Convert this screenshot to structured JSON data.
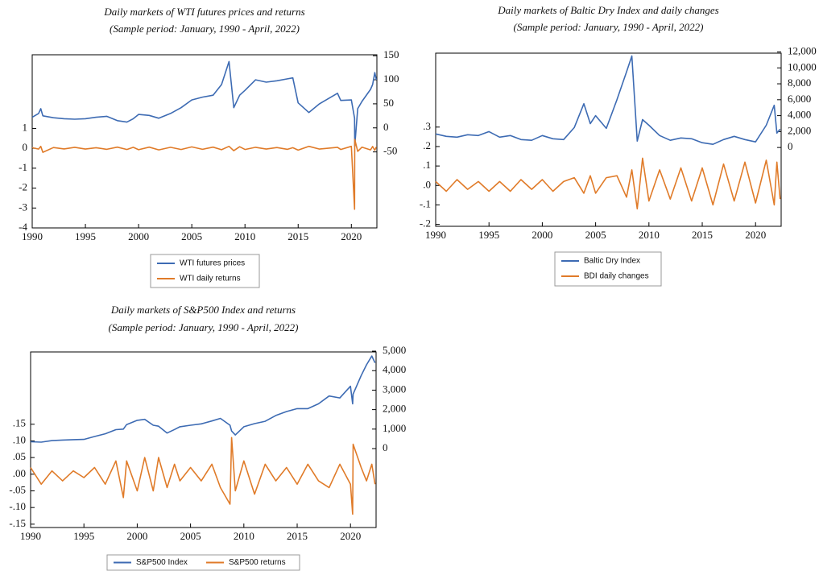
{
  "chart_data": [
    {
      "type": "line",
      "title": "Daily markets of WTI futures prices and returns",
      "subtitle": "(Sample period: January, 1990 - April, 2022)",
      "x": [
        1990,
        1990.6,
        1990.8,
        1991,
        1992,
        1993,
        1994,
        1995,
        1996,
        1997,
        1998,
        1998.9,
        1999.5,
        2000,
        2001,
        2001.9,
        2003,
        2004,
        2005,
        2006,
        2007,
        2007.8,
        2008.5,
        2008.95,
        2009.5,
        2010,
        2011,
        2012,
        2013,
        2014,
        2014.5,
        2015,
        2016,
        2017,
        2018.7,
        2019,
        2020,
        2020.3,
        2020.32,
        2020.6,
        2021,
        2021.8,
        2022,
        2022.2,
        2022.35
      ],
      "xlim": [
        1990,
        2022.4
      ],
      "xticks": [
        1990,
        1995,
        2000,
        2005,
        2010,
        2015,
        2020
      ],
      "ylim": [
        -4,
        4.7
      ],
      "yticks": [
        1,
        0,
        -1,
        -2,
        -3,
        -4
      ],
      "y2lim": [
        -208,
        152
      ],
      "y2ticks": [
        150,
        100,
        50,
        0,
        -50
      ],
      "series": [
        {
          "name": "WTI futures prices",
          "color": "#3d6bb3",
          "axis": "y2",
          "values": [
            22,
            30,
            40,
            25,
            21,
            19,
            18,
            19,
            22,
            24,
            15,
            12,
            19,
            28,
            26,
            20,
            30,
            42,
            58,
            64,
            68,
            90,
            138,
            42,
            68,
            78,
            100,
            95,
            98,
            102,
            104,
            52,
            32,
            50,
            72,
            57,
            58,
            20,
            -38,
            40,
            55,
            80,
            90,
            115,
            100
          ]
        },
        {
          "name": "WTI daily returns",
          "color": "#e07b29",
          "values": [
            0.03,
            -0.04,
            0.1,
            -0.2,
            0.04,
            -0.03,
            0.05,
            -0.04,
            0.03,
            -0.05,
            0.06,
            -0.06,
            0.05,
            -0.07,
            0.06,
            -0.08,
            0.05,
            -0.06,
            0.07,
            -0.05,
            0.06,
            -0.07,
            0.1,
            -0.12,
            0.08,
            -0.06,
            0.05,
            -0.04,
            0.04,
            -0.05,
            0.03,
            -0.09,
            0.1,
            -0.04,
            0.05,
            -0.06,
            0.1,
            -3.06,
            0.45,
            -0.15,
            0.06,
            -0.08,
            0.09,
            -0.1,
            0.07
          ]
        }
      ]
    },
    {
      "type": "line",
      "title": "Daily markets of Baltic Dry Index and daily changes",
      "subtitle": "(Sample period: January, 1990 - April, 2022)",
      "x": [
        1990,
        1991,
        1992,
        1993,
        1994,
        1995,
        1996,
        1997,
        1998,
        1999,
        2000,
        2001,
        2002,
        2003,
        2003.9,
        2004.5,
        2005,
        2006,
        2007,
        2007.9,
        2008.4,
        2008.9,
        2009.4,
        2010,
        2011,
        2012,
        2013,
        2014,
        2015,
        2016,
        2017,
        2018,
        2019,
        2020,
        2021,
        2021.75,
        2022,
        2022.3
      ],
      "xlim": [
        1990,
        2022.4
      ],
      "xticks": [
        1990,
        1995,
        2000,
        2005,
        2010,
        2015,
        2020
      ],
      "ylim": [
        -0.21,
        0.68
      ],
      "yticks": [
        {
          "value": 0.3,
          "label": ".3"
        },
        {
          "value": 0.2,
          "label": ".2"
        },
        {
          "value": 0.1,
          "label": ".1"
        },
        {
          "value": 0,
          "label": ".0"
        },
        {
          "value": -0.1,
          "label": "-.1"
        },
        {
          "value": -0.2,
          "label": "-.2"
        }
      ],
      "y2lim": [
        -9900,
        11850
      ],
      "y2ticks": [
        {
          "value": 12000,
          "label": "12,000"
        },
        {
          "value": 10000,
          "label": "10,000"
        },
        {
          "value": 8000,
          "label": "8,000"
        },
        {
          "value": 6000,
          "label": "6,000"
        },
        {
          "value": 4000,
          "label": "4,000"
        },
        {
          "value": 2000,
          "label": "2,000"
        },
        0
      ],
      "series": [
        {
          "name": "Baltic Dry Index",
          "color": "#3d6bb3",
          "axis": "y2",
          "values": [
            1700,
            1400,
            1300,
            1600,
            1500,
            2000,
            1300,
            1500,
            1000,
            900,
            1500,
            1100,
            1000,
            2500,
            5500,
            3000,
            4000,
            2400,
            6000,
            9500,
            11500,
            800,
            3500,
            2800,
            1500,
            900,
            1200,
            1100,
            600,
            400,
            1000,
            1400,
            1000,
            700,
            2800,
            5300,
            1800,
            2300
          ]
        },
        {
          "name": "BDI daily changes",
          "color": "#e07b29",
          "values": [
            0.02,
            -0.03,
            0.03,
            -0.02,
            0.02,
            -0.03,
            0.02,
            -0.03,
            0.03,
            -0.02,
            0.03,
            -0.03,
            0.02,
            0.04,
            -0.04,
            0.05,
            -0.04,
            0.04,
            0.05,
            -0.06,
            0.08,
            -0.12,
            0.14,
            -0.08,
            0.08,
            -0.07,
            0.09,
            -0.08,
            0.09,
            -0.1,
            0.11,
            -0.08,
            0.12,
            -0.09,
            0.13,
            -0.1,
            0.12,
            -0.07
          ]
        }
      ]
    },
    {
      "type": "line",
      "title": "Daily markets of S&P500 Index and returns",
      "subtitle": "(Sample period: January, 1990 - April, 2022)",
      "x": [
        1990,
        1991,
        1992,
        1993,
        1994,
        1995,
        1996,
        1997,
        1998,
        1998.7,
        1999,
        2000,
        2000.7,
        2001.5,
        2002,
        2002.8,
        2003.5,
        2004,
        2005,
        2006,
        2007,
        2007.8,
        2008.7,
        2008.85,
        2009.2,
        2010,
        2011,
        2012,
        2013,
        2014,
        2015,
        2016,
        2017,
        2018,
        2019,
        2020,
        2020.2,
        2020.25,
        2021,
        2021.5,
        2022,
        2022.3
      ],
      "xlim": [
        1990,
        2022.4
      ],
      "xticks": [
        1990,
        1995,
        2000,
        2005,
        2010,
        2015,
        2020
      ],
      "ylim": [
        -0.16,
        0.367
      ],
      "yticks": [
        {
          "value": 0.15,
          "label": ".15"
        },
        {
          "value": 0.1,
          "label": ".10"
        },
        {
          "value": 0.05,
          "label": ".05"
        },
        {
          "value": 0,
          "label": ".00"
        },
        {
          "value": -0.05,
          "label": "-.05"
        },
        {
          "value": -0.1,
          "label": "-.10"
        },
        {
          "value": -0.15,
          "label": "-.15"
        }
      ],
      "y2lim": [
        -4050,
        4960
      ],
      "y2ticks": [
        {
          "value": 5000,
          "label": "5,000"
        },
        {
          "value": 4000,
          "label": "4,000"
        },
        {
          "value": 3000,
          "label": "3,000"
        },
        {
          "value": 2000,
          "label": "2,000"
        },
        {
          "value": 1000,
          "label": "1,000"
        },
        0
      ],
      "series": [
        {
          "name": "S&P500 Index",
          "color": "#3d6bb3",
          "axis": "y2",
          "values": [
            350,
            330,
            410,
            440,
            460,
            470,
            620,
            760,
            970,
            1000,
            1230,
            1450,
            1500,
            1200,
            1150,
            800,
            980,
            1120,
            1200,
            1270,
            1420,
            1550,
            1200,
            900,
            700,
            1120,
            1280,
            1400,
            1700,
            1900,
            2050,
            2050,
            2300,
            2700,
            2600,
            3200,
            2300,
            2800,
            3750,
            4300,
            4750,
            4400
          ]
        },
        {
          "name": "S&P500 returns",
          "color": "#e07b29",
          "values": [
            0.02,
            -0.03,
            0.01,
            -0.02,
            0.01,
            -0.01,
            0.02,
            -0.03,
            0.04,
            -0.07,
            0.04,
            -0.05,
            0.05,
            -0.05,
            0.05,
            -0.04,
            0.03,
            -0.02,
            0.02,
            -0.02,
            0.03,
            -0.04,
            -0.09,
            0.11,
            -0.05,
            0.04,
            -0.06,
            0.03,
            -0.02,
            0.02,
            -0.03,
            0.03,
            -0.02,
            -0.04,
            0.03,
            -0.03,
            -0.12,
            0.09,
            0.02,
            -0.02,
            0.03,
            -0.03
          ]
        }
      ]
    }
  ]
}
